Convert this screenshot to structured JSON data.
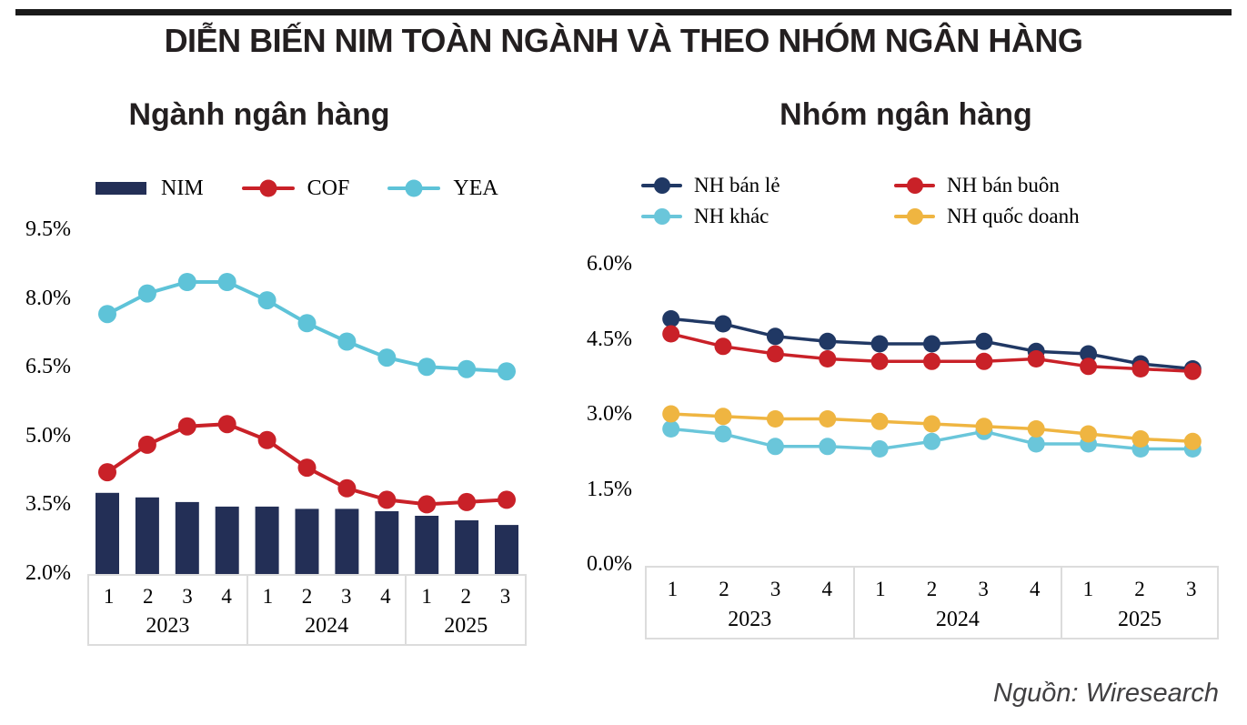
{
  "header": {
    "title": "DIỄN BIẾN NIM TOÀN NGÀNH VÀ THEO NHÓM NGÂN HÀNG"
  },
  "footer": {
    "source": "Nguồn: Wiresearch"
  },
  "colors": {
    "navy": "#232f56",
    "navy_right": "#203864",
    "red": "#c92128",
    "cyan": "#5ec3d8",
    "cyan_right": "#6ac6da",
    "yellow": "#efb541",
    "box_border": "#dcdcdc",
    "top_bar": "#1a1a1a",
    "title_text": "#231f20",
    "source_text": "#414042"
  },
  "chart_data": [
    {
      "type": "combo",
      "title": "Ngành ngân hàng",
      "categories": [
        "1",
        "2",
        "3",
        "4",
        "1",
        "2",
        "3",
        "4",
        "1",
        "2",
        "3"
      ],
      "year_groups": [
        {
          "label": "2023",
          "count": 4
        },
        {
          "label": "2024",
          "count": 4
        },
        {
          "label": "2025",
          "count": 3
        }
      ],
      "ylim": [
        2.0,
        9.5
      ],
      "yticks": [
        "9.5%",
        "8.0%",
        "6.5%",
        "5.0%",
        "3.5%",
        "2.0%"
      ],
      "ytick_values": [
        9.5,
        8.0,
        6.5,
        5.0,
        3.5,
        2.0
      ],
      "unit": "%",
      "grid": false,
      "legend_position": "top",
      "series": [
        {
          "name": "NIM",
          "kind": "bar",
          "color": "#232f56",
          "values": [
            3.75,
            3.65,
            3.55,
            3.45,
            3.45,
            3.4,
            3.4,
            3.35,
            3.25,
            3.15,
            3.05
          ]
        },
        {
          "name": "COF",
          "kind": "line",
          "color": "#c92128",
          "values": [
            4.2,
            4.8,
            5.2,
            5.25,
            4.9,
            4.3,
            3.85,
            3.6,
            3.5,
            3.55,
            3.6
          ]
        },
        {
          "name": "YEA",
          "kind": "line",
          "color": "#5ec3d8",
          "values": [
            7.65,
            8.1,
            8.35,
            8.35,
            7.95,
            7.45,
            7.05,
            6.7,
            6.5,
            6.45,
            6.4
          ]
        }
      ]
    },
    {
      "type": "line",
      "title": "Nhóm ngân hàng",
      "categories": [
        "1",
        "2",
        "3",
        "4",
        "1",
        "2",
        "3",
        "4",
        "1",
        "2",
        "3"
      ],
      "year_groups": [
        {
          "label": "2023",
          "count": 4
        },
        {
          "label": "2024",
          "count": 4
        },
        {
          "label": "2025",
          "count": 3
        }
      ],
      "ylim": [
        0.0,
        6.0
      ],
      "yticks": [
        "6.0%",
        "4.5%",
        "3.0%",
        "1.5%",
        "0.0%"
      ],
      "ytick_values": [
        6.0,
        4.5,
        3.0,
        1.5,
        0.0
      ],
      "unit": "%",
      "grid": false,
      "legend_position": "top",
      "series": [
        {
          "name": "NH bán lẻ",
          "kind": "line",
          "color": "#203864",
          "values": [
            4.9,
            4.8,
            4.55,
            4.45,
            4.4,
            4.4,
            4.45,
            4.25,
            4.2,
            4.0,
            3.9
          ]
        },
        {
          "name": "NH bán buôn",
          "kind": "line",
          "color": "#c92128",
          "values": [
            4.6,
            4.35,
            4.2,
            4.1,
            4.05,
            4.05,
            4.05,
            4.1,
            3.95,
            3.9,
            3.85
          ]
        },
        {
          "name": "NH khác",
          "kind": "line",
          "color": "#6ac6da",
          "values": [
            2.7,
            2.6,
            2.35,
            2.35,
            2.3,
            2.45,
            2.65,
            2.4,
            2.4,
            2.3,
            2.3
          ]
        },
        {
          "name": "NH quốc doanh",
          "kind": "line",
          "color": "#efb541",
          "values": [
            3.0,
            2.95,
            2.9,
            2.9,
            2.85,
            2.8,
            2.75,
            2.7,
            2.6,
            2.5,
            2.45
          ]
        }
      ]
    }
  ]
}
